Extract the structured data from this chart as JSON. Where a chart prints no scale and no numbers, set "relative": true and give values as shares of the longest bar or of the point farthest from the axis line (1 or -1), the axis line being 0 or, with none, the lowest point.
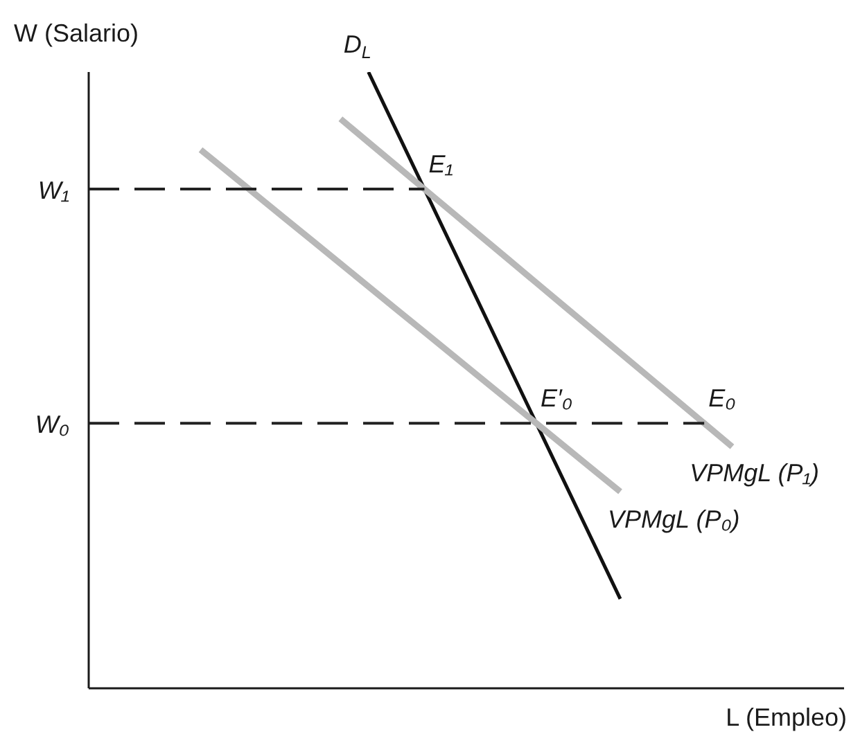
{
  "chart_data": {
    "type": "line",
    "xlabel": "L (Empleo)",
    "ylabel": "W (Salario)",
    "relative": true,
    "tick_labels": false,
    "categories": [
      null,
      null,
      null,
      null,
      null,
      null,
      null,
      null,
      null,
      null,
      null,
      null,
      null,
      null,
      null,
      null,
      null,
      null,
      null,
      null,
      null,
      null,
      null,
      null,
      null,
      null,
      null,
      null
    ],
    "series": [
      {
        "name": "D$_{L}$",
        "color": "#111111",
        "values": [
          null,
          null,
          null,
          null,
          null,
          null,
          null,
          null,
          null,
          null,
          1.0,
          0.905,
          0.81,
          0.715,
          0.62,
          0.525,
          0.43,
          0.335,
          0.24,
          0.145,
          null,
          null,
          null,
          null,
          null,
          null,
          null,
          null
        ]
      },
      {
        "name": "VPMgL (P₁)",
        "color": "#b8b8b8",
        "values": [
          null,
          null,
          null,
          null,
          null,
          null,
          null,
          null,
          null,
          0.924,
          0.886,
          0.848,
          0.81,
          0.772,
          0.734,
          0.696,
          0.658,
          0.62,
          0.582,
          0.544,
          0.506,
          0.468,
          0.43,
          0.392,
          null,
          null,
          null,
          null
        ]
      },
      {
        "name": "VPMgL (P₀)",
        "color": "#b8b8b8",
        "values": [
          null,
          null,
          null,
          null,
          0.874,
          0.837,
          0.8,
          0.763,
          0.726,
          0.689,
          0.652,
          0.615,
          0.578,
          0.541,
          0.504,
          0.467,
          0.43,
          0.393,
          0.356,
          0.319,
          null,
          null,
          null,
          null,
          null,
          null,
          null,
          null
        ]
      },
      {
        "color": "#222222",
        "line_style": "dashed",
        "values": [
          0.81,
          0.81,
          0.81,
          0.81,
          0.81,
          0.81,
          0.81,
          0.81,
          0.81,
          0.81,
          0.81,
          0.81,
          0.81,
          null,
          null,
          null,
          null,
          null,
          null,
          null,
          null,
          null,
          null,
          null,
          null,
          null,
          null,
          null
        ]
      },
      {
        "color": "#222222",
        "line_style": "dashed",
        "values": [
          0.43,
          0.43,
          0.43,
          0.43,
          0.43,
          0.43,
          0.43,
          0.43,
          0.43,
          0.43,
          0.43,
          0.43,
          0.43,
          0.43,
          0.43,
          0.43,
          0.43,
          0.43,
          0.43,
          0.43,
          0.43,
          0.43,
          0.43,
          null,
          null,
          null,
          null,
          null
        ]
      }
    ],
    "annotations": [
      "W₁",
      "W₀",
      "E₁",
      "E′₀",
      "E₀"
    ]
  }
}
